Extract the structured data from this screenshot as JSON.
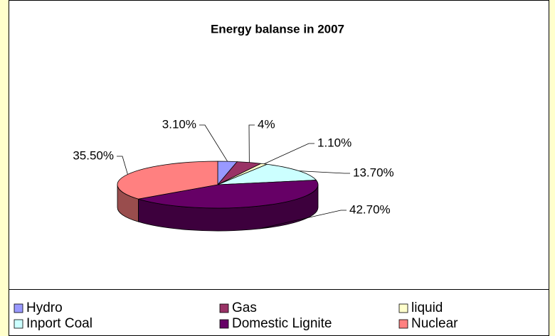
{
  "chart_data": {
    "type": "pie3d",
    "title": "Energy  balanse in 2007",
    "categories": [
      "Hydro",
      "Gas",
      "liquid",
      "Inport Coal",
      "Domestic Lignite",
      "Nuclear"
    ],
    "values": [
      3.1,
      4,
      1.1,
      13.7,
      42.7,
      35.5
    ],
    "value_labels": [
      "3.10%",
      "4%",
      "1.10%",
      "13.70%",
      "42.70%",
      "35.50%"
    ],
    "colors": [
      "#9999ff",
      "#993366",
      "#ffffcc",
      "#ccffff",
      "#660066",
      "#ff8080"
    ],
    "legend": "bottom"
  }
}
